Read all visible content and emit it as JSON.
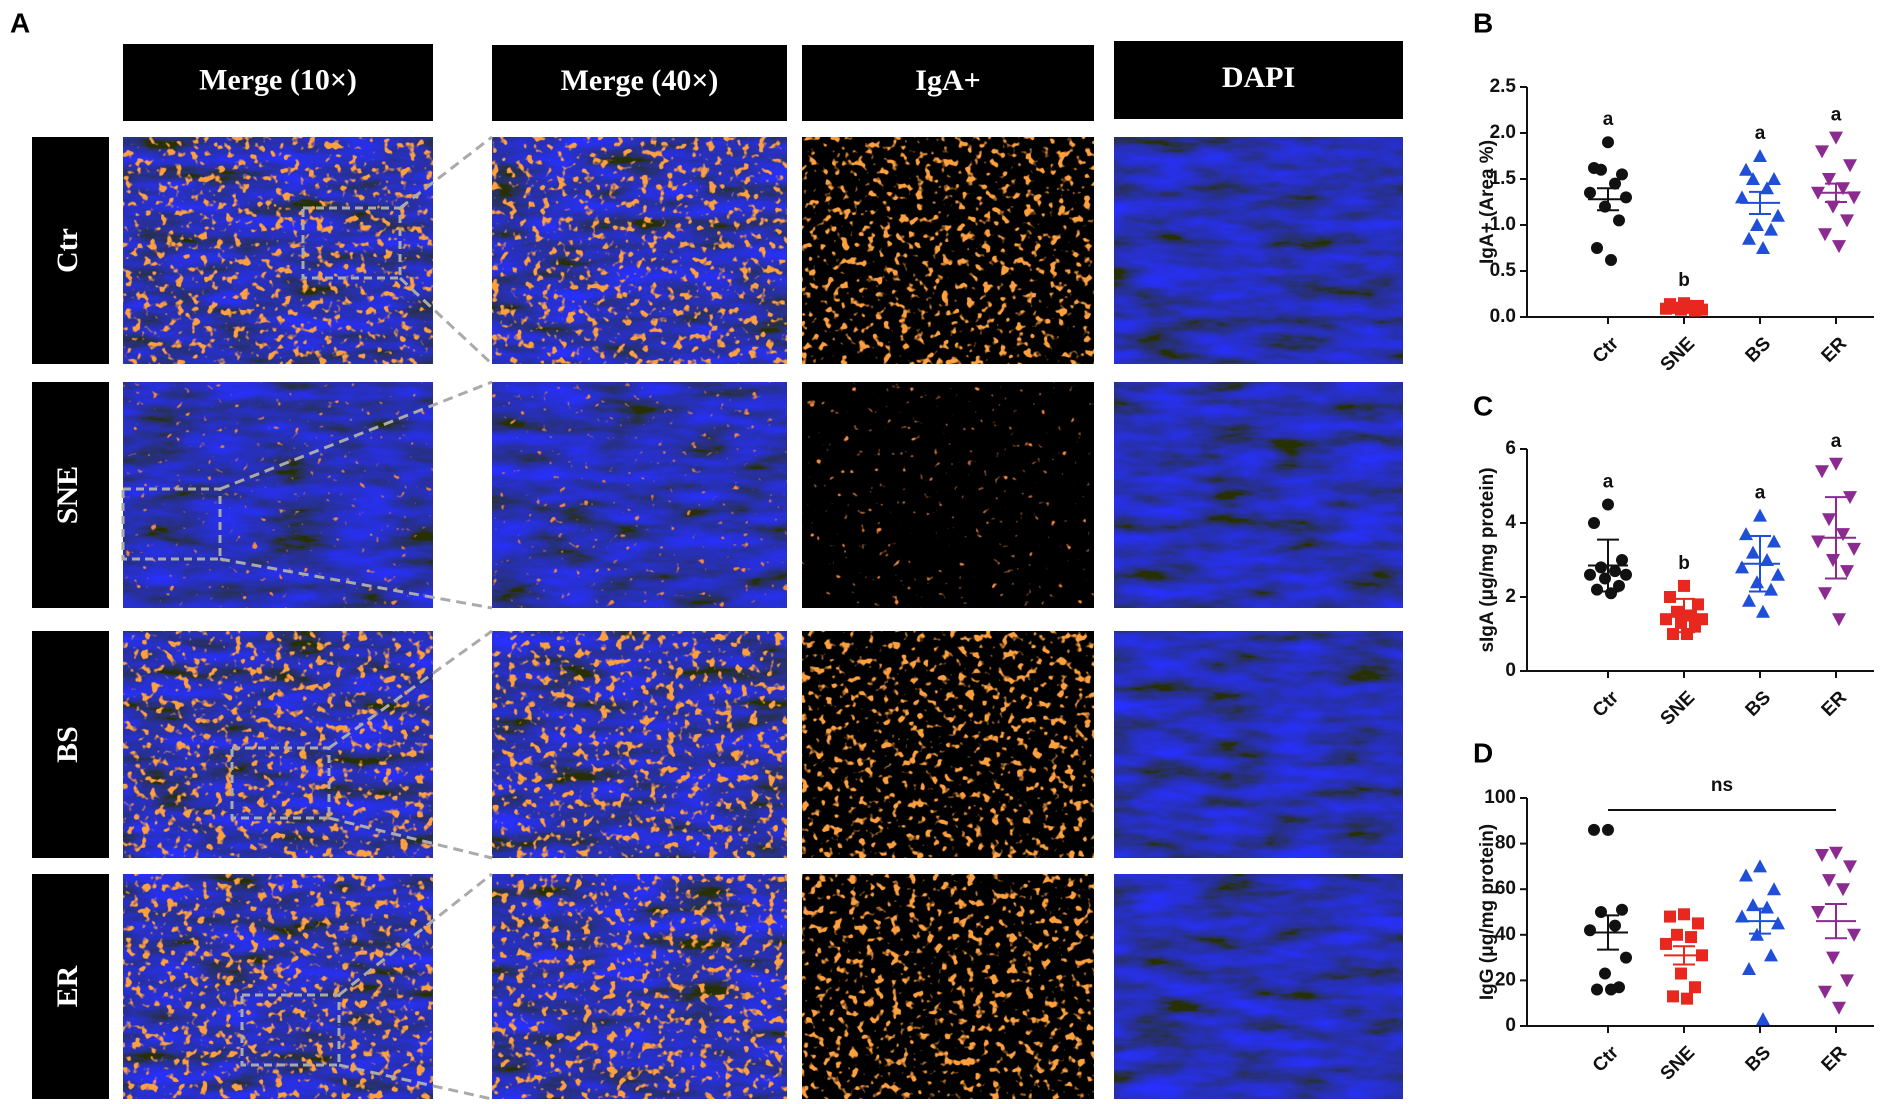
{
  "figure": {
    "panels": [
      "A",
      "B",
      "C",
      "D"
    ],
    "columns": [
      "Merge (10×)",
      "Merge (40×)",
      "IgA+",
      "DAPI"
    ],
    "rows": [
      "Ctr",
      "SNE",
      "BS",
      "ER"
    ]
  },
  "chart_data": [
    {
      "type": "dot",
      "ylabel": "IgA+ (Area %)",
      "categories": [
        "Ctr",
        "SNE",
        "BS",
        "ER"
      ],
      "ylim": [
        0,
        2.5
      ],
      "yticks": [
        {
          "value": 0,
          "label": "0.0"
        },
        0.5,
        {
          "value": 1,
          "label": "1.0"
        },
        1.5,
        {
          "value": 2,
          "label": "2.0"
        },
        2.5
      ],
      "letters": [
        "a",
        "b",
        "a",
        "a"
      ],
      "groups": [
        {
          "color": "#111111",
          "marker": "circle",
          "values": [
            1.9,
            1.62,
            1.55,
            1.6,
            1.45,
            1.35,
            1.3,
            1.2,
            1.05,
            0.75,
            0.62
          ],
          "mean": 1.28,
          "error": 0.12
        },
        {
          "color": "#e8281e",
          "marker": "square",
          "values": [
            0.15,
            0.14,
            0.12,
            0.1,
            0.1,
            0.09,
            0.08,
            0.08,
            0.07,
            0.1,
            0.12
          ],
          "mean": 0.11,
          "error": 0.01
        },
        {
          "color": "#1f4fd8",
          "marker": "triangle",
          "values": [
            1.75,
            1.6,
            1.5,
            1.5,
            1.4,
            1.3,
            1.1,
            1.0,
            0.95,
            0.85,
            0.75
          ],
          "mean": 1.24,
          "error": 0.12
        },
        {
          "color": "#8b2a8f",
          "marker": "triangle-down",
          "values": [
            1.95,
            1.8,
            1.65,
            1.5,
            1.4,
            1.35,
            1.3,
            1.2,
            1.05,
            0.9,
            0.77
          ],
          "mean": 1.35,
          "error": 0.1
        }
      ]
    },
    {
      "type": "dot",
      "ylabel": "sIgA (μg/mg protein)",
      "categories": [
        "Ctr",
        "SNE",
        "BS",
        "ER"
      ],
      "ylim": [
        0,
        6
      ],
      "yticks": [
        0,
        2,
        4,
        6
      ],
      "letters": [
        "a",
        "b",
        "a",
        "a"
      ],
      "groups": [
        {
          "color": "#111111",
          "marker": "circle",
          "values": [
            4.5,
            4.0,
            3.0,
            2.8,
            2.7,
            2.6,
            2.6,
            2.5,
            2.3,
            2.2,
            2.1
          ],
          "mean": 2.85,
          "error": 0.7
        },
        {
          "color": "#e8281e",
          "marker": "square",
          "values": [
            2.3,
            2.0,
            1.8,
            1.6,
            1.5,
            1.4,
            1.4,
            1.3,
            1.2,
            1.0,
            1.0
          ],
          "mean": 1.5,
          "error": 0.45
        },
        {
          "color": "#1f4fd8",
          "marker": "triangle",
          "values": [
            4.2,
            3.7,
            3.5,
            3.2,
            3.0,
            2.8,
            2.6,
            2.4,
            2.2,
            1.9,
            1.6
          ],
          "mean": 2.9,
          "error": 0.75
        },
        {
          "color": "#8b2a8f",
          "marker": "triangle-down",
          "values": [
            5.6,
            5.4,
            4.7,
            4.1,
            3.7,
            3.5,
            3.3,
            3.0,
            2.7,
            2.1,
            1.4
          ],
          "mean": 3.6,
          "error": 1.1
        }
      ]
    },
    {
      "type": "dot",
      "ylabel": "IgG (μg/mg protein)",
      "categories": [
        "Ctr",
        "SNE",
        "BS",
        "ER"
      ],
      "ylim": [
        0,
        100
      ],
      "yticks": [
        0,
        20,
        40,
        60,
        80,
        100
      ],
      "annotation": "ns",
      "groups": [
        {
          "color": "#111111",
          "marker": "circle",
          "values": [
            86,
            86,
            51,
            50,
            44,
            42,
            30,
            23,
            17,
            16,
            16
          ],
          "mean": 41,
          "error": 7.5
        },
        {
          "color": "#e8281e",
          "marker": "square",
          "values": [
            49,
            48,
            45,
            40,
            39,
            36,
            31,
            23,
            17,
            13,
            12
          ],
          "mean": 31,
          "error": 4
        },
        {
          "color": "#1f4fd8",
          "marker": "triangle",
          "values": [
            70,
            66,
            60,
            53,
            52,
            48,
            45,
            40,
            31,
            25,
            3
          ],
          "mean": 46,
          "error": 5.5
        },
        {
          "color": "#8b2a8f",
          "marker": "triangle-down",
          "values": [
            76,
            75,
            70,
            64,
            60,
            50,
            40,
            30,
            20,
            15,
            8
          ],
          "mean": 46,
          "error": 7.5
        }
      ]
    }
  ]
}
